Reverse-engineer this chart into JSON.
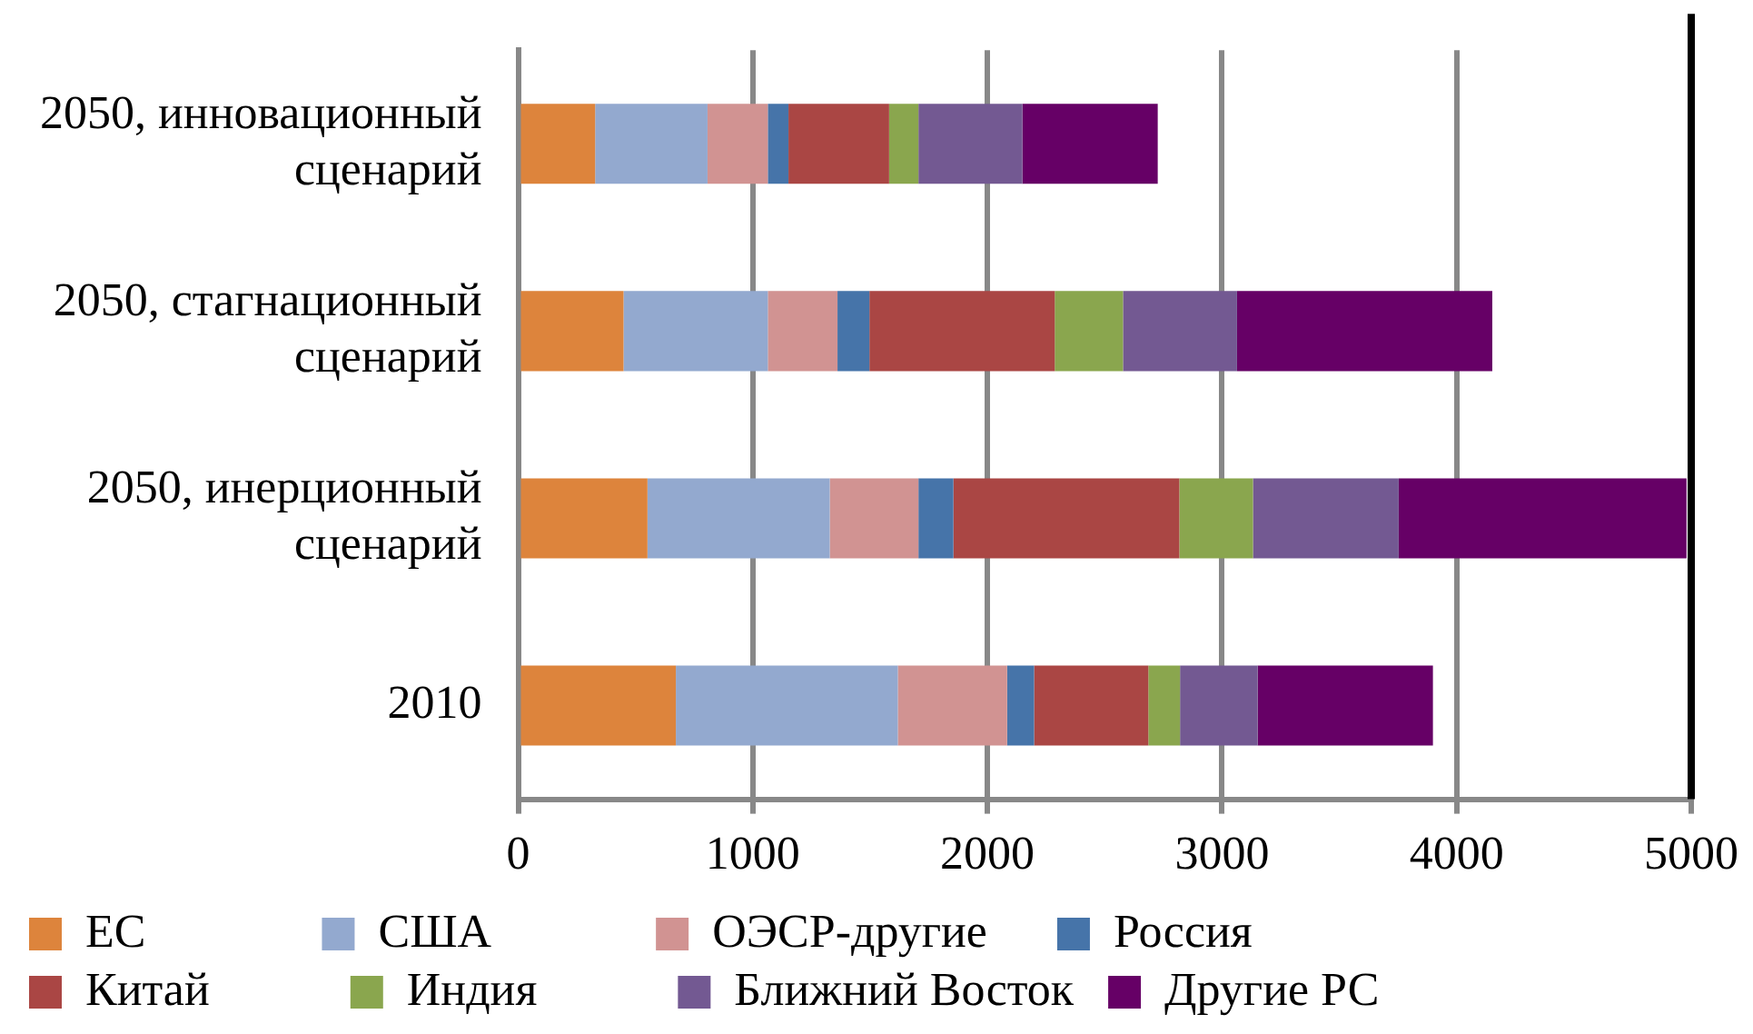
{
  "chart_data": {
    "type": "bar",
    "orientation": "horizontal",
    "stacked": true,
    "categories": [
      "2050, инновационный сценарий",
      "2050, стагнационный сценарий",
      "2050, инерционный сценарий",
      "2010"
    ],
    "series": [
      {
        "name": "ЕС",
        "color": "#dd843c",
        "values": [
          328,
          449,
          551,
          672
        ]
      },
      {
        "name": "США",
        "color": "#93a9cf",
        "values": [
          479,
          615,
          777,
          946
        ]
      },
      {
        "name": "ОЭСР-другие",
        "color": "#d19392",
        "values": [
          257,
          297,
          378,
          466
        ]
      },
      {
        "name": "Россия",
        "color": "#4674a9",
        "values": [
          88,
          136,
          149,
          115
        ]
      },
      {
        "name": "Китай",
        "color": "#aa4644",
        "values": [
          429,
          790,
          963,
          487
        ]
      },
      {
        "name": "Индия",
        "color": "#8aa64e",
        "values": [
          125,
          291,
          314,
          135
        ]
      },
      {
        "name": "Ближний Восток",
        "color": "#735992",
        "values": [
          443,
          486,
          621,
          331
        ]
      },
      {
        "name": "Другие РС",
        "color": "#660066",
        "values": [
          577,
          1088,
          1227,
          747
        ]
      }
    ],
    "xlim": [
      0,
      5000
    ],
    "xticks": [
      0,
      1000,
      2000,
      3000,
      4000,
      5000
    ],
    "grid": "x",
    "legend": "bottom"
  }
}
